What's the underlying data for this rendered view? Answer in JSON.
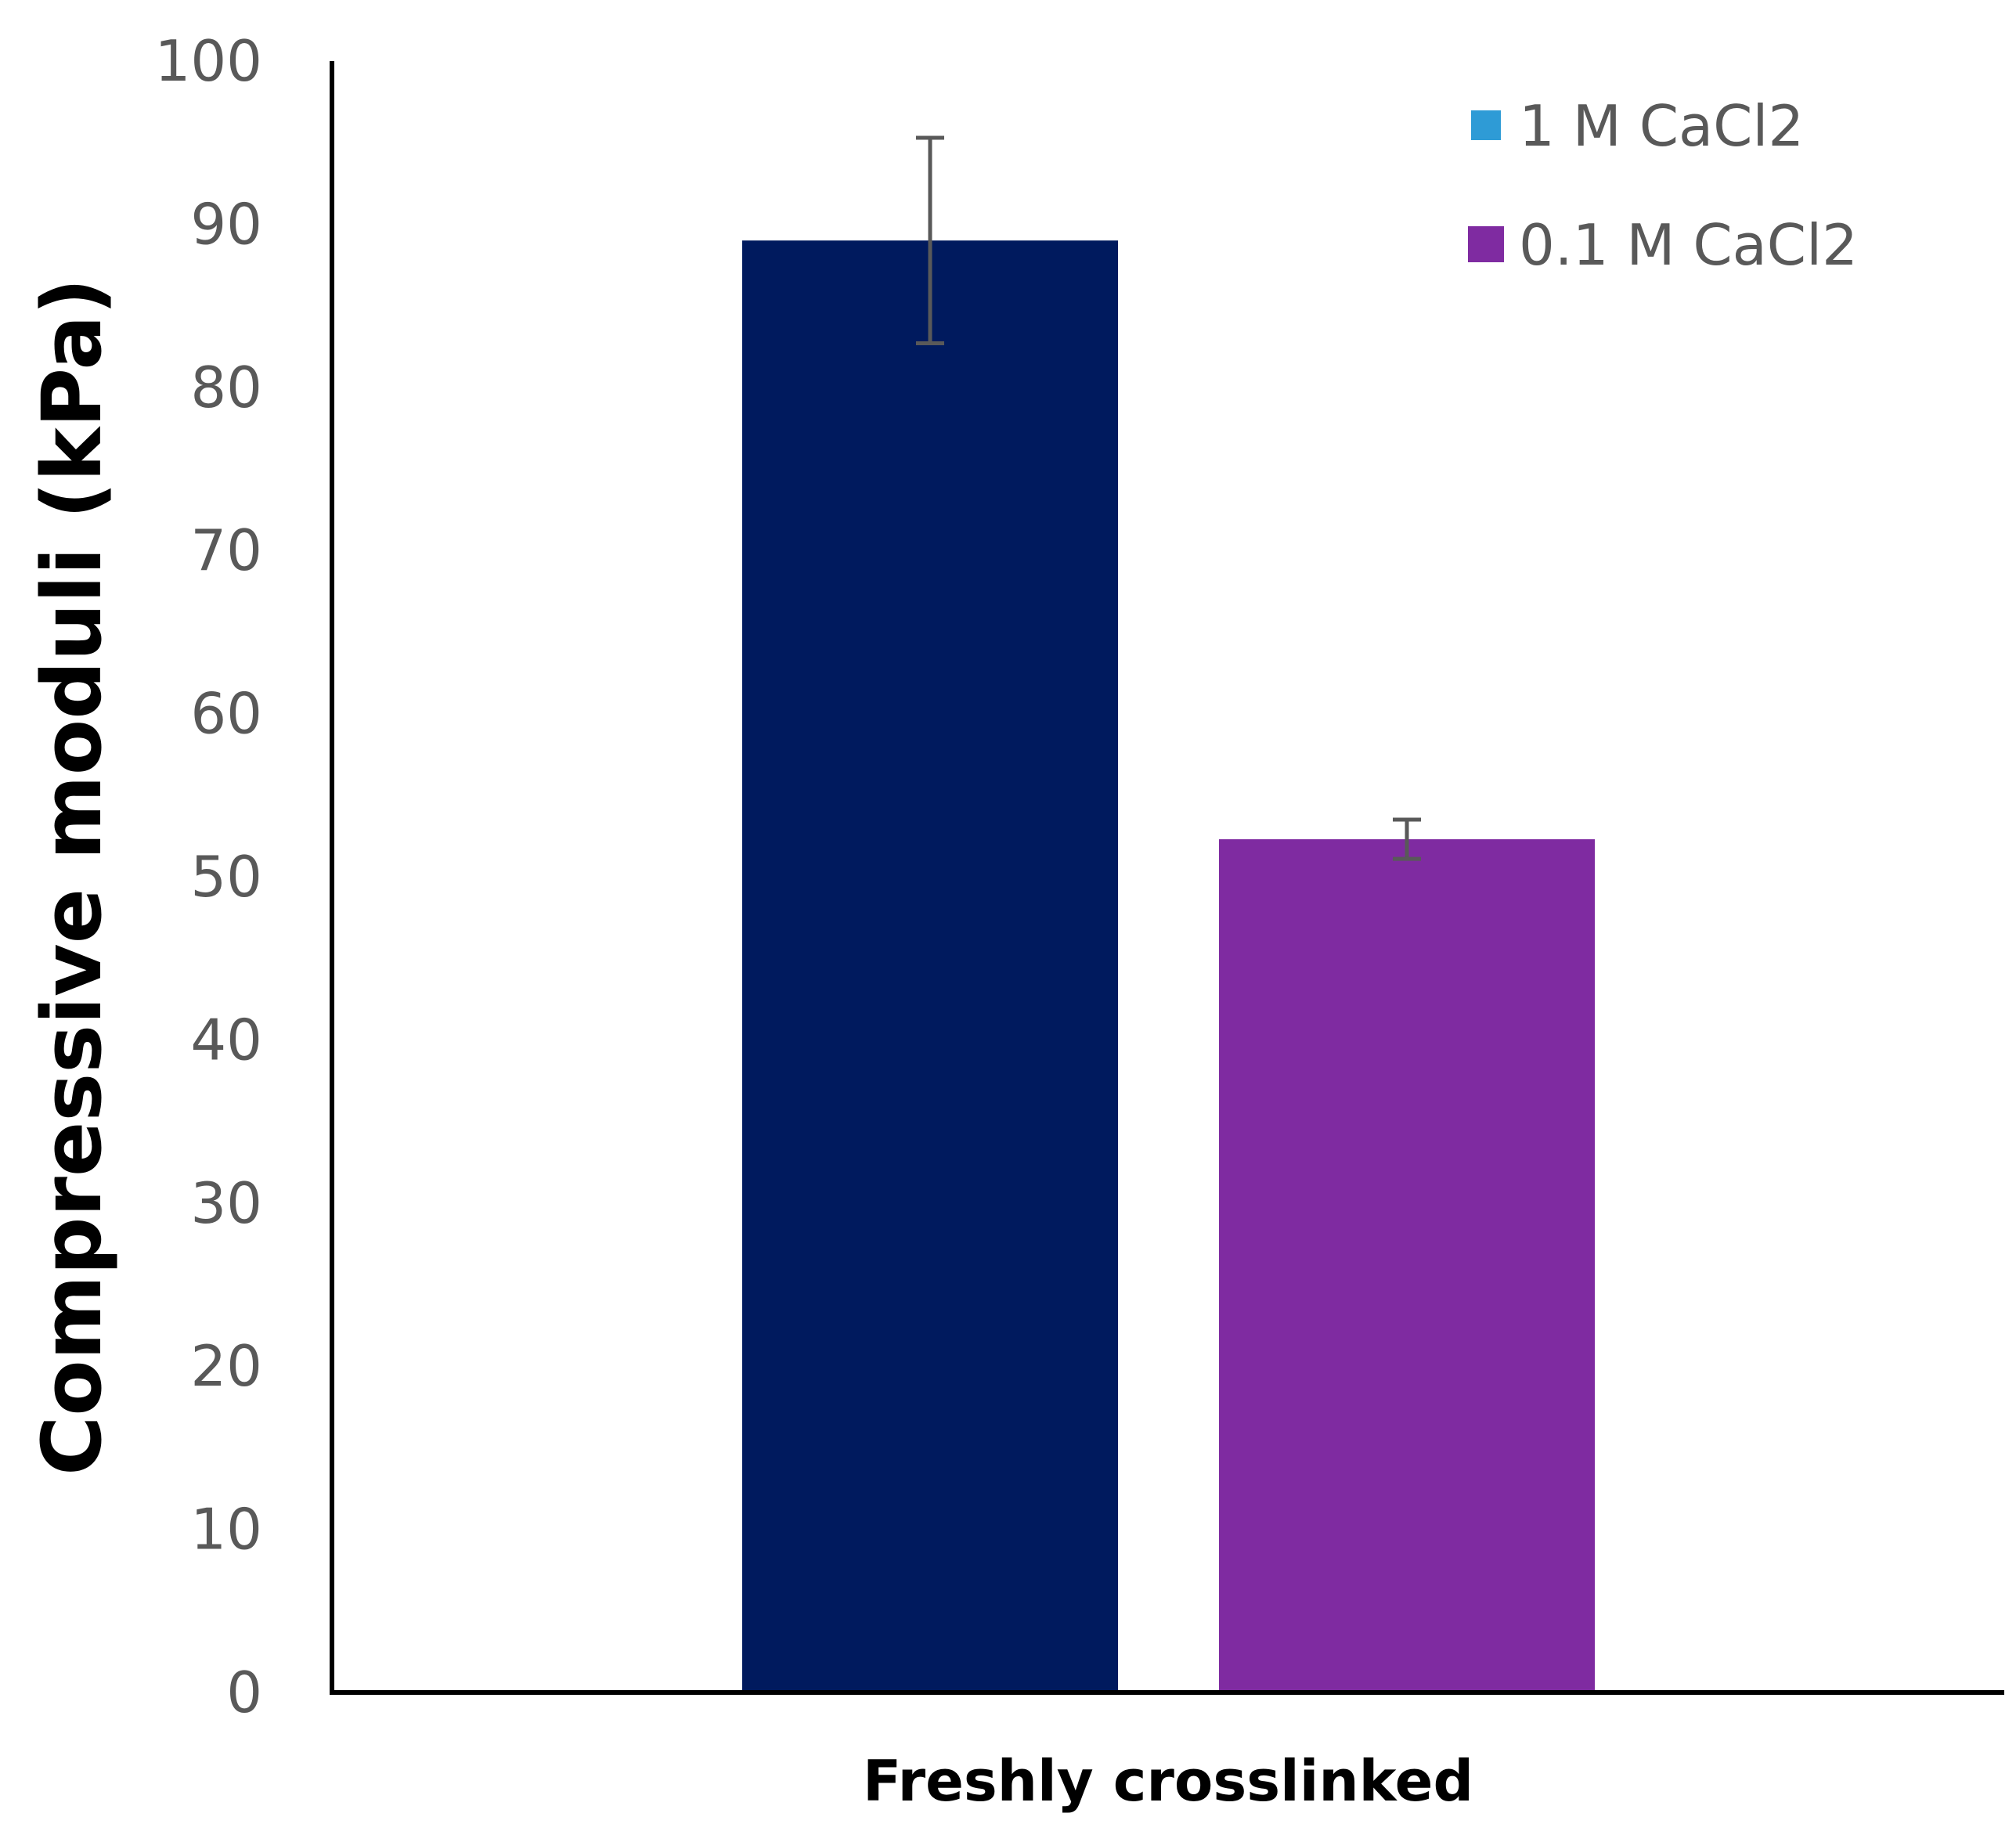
{
  "chart_data": {
    "type": "bar",
    "title": "",
    "xlabel": "",
    "ylabel": "Compressive moduli (kPa)",
    "categories": [
      "Freshly crosslinked"
    ],
    "series": [
      {
        "name": "1 M CaCl2",
        "bar_color": "#001A5E",
        "legend_color": "#2E9BD6",
        "values": [
          89
        ],
        "error": [
          6.3
        ]
      },
      {
        "name": "0.1 M CaCl2",
        "bar_color": "#7F2BA1",
        "legend_color": "#7F2BA1",
        "values": [
          52.3
        ],
        "error": [
          1.2
        ]
      }
    ],
    "ylim": [
      0,
      100
    ],
    "yticks": [
      "0",
      "10",
      "20",
      "30",
      "40",
      "50",
      "60",
      "70",
      "80",
      "90",
      "100"
    ],
    "grid": false,
    "legend_position": "top-right"
  },
  "colors": {
    "axis": "#000000",
    "error_bar": "#595959",
    "tick_text": "#595959"
  }
}
